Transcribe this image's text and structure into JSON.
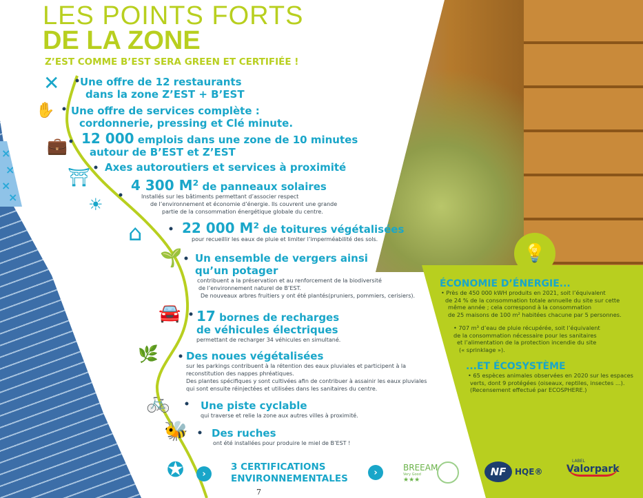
{
  "title_line1": "LES POINTS FORTS",
  "title_line2": "DE LA ZONE",
  "subtitle": "Z’EST COMME B’EST SERA GREEN ET CERTIFIÉE !",
  "points": [
    {
      "icon": "cutlery-icon",
      "heading": [
        "Une offre de 12 restaurants",
        "dans la zone Z’EST + B’EST"
      ]
    },
    {
      "icon": "hand-icon",
      "heading": [
        "Une offre de services complète :",
        "cordonnerie, pressing et Clé minute."
      ]
    },
    {
      "icon": "briefcase-icon",
      "number": "12 000",
      "heading": [
        "emplois dans une zone de 10 minutes",
        "autour de B’EST et Z’EST"
      ]
    },
    {
      "icon": "highway-icon",
      "heading": [
        "Axes autoroutiers et services à proximité"
      ]
    },
    {
      "icon": "solar-panel-icon",
      "number": "4 300 M²",
      "heading": [
        "de panneaux solaires"
      ],
      "text": [
        "Installés sur les bâtiments  permettant d’associer respect",
        "de l’environnement et économie d’énergie. Ils couvrent une grande",
        "partie de la consommation énergétique globale du centre."
      ]
    },
    {
      "icon": "green-house-icon",
      "number": "22 000 M²",
      "heading": [
        "de toitures végétalisées"
      ],
      "text": [
        "pour recueillir les eaux de pluie et limiter l’imperméabilité des sols."
      ]
    },
    {
      "icon": "plant-hand-icon",
      "heading": [
        "Un ensemble de vergers ainsi",
        "qu’un potager"
      ],
      "text": [
        "contribuent a la préservation et au renforcement de la biodiversité",
        "de l’environnement naturel de B’EST.",
        "De nouveaux arbres fruitiers y ont été plantés(pruniers, pommiers, cerisiers)."
      ]
    },
    {
      "icon": "electric-car-icon",
      "number": "17",
      "heading": [
        "bornes de recharges",
        "de véhicules électriques"
      ],
      "text": [
        "permettant de recharger 34 véhicules en simultané."
      ]
    },
    {
      "icon": "sprouts-icon",
      "heading": [
        "Des noues végétalisées"
      ],
      "text": [
        "sur les parkings contribuent à la rétention des eaux pluviales et participent à la",
        "reconstitution des nappes phréatiques.",
        "Des plantes spécifiques y sont cultivées afin de contribuer à assainir les eaux pluviales",
        "qui sont ensuite réinjectées et utilisées dans les sanitaires du centre."
      ]
    },
    {
      "icon": "bicycle-icon",
      "heading": [
        "Une piste cyclable"
      ],
      "text": [
        "qui traverse et relie la zone aux autres villes à proximité."
      ]
    },
    {
      "icon": "beehive-icon",
      "heading": [
        "Des ruches"
      ],
      "text": [
        "ont été installées pour produire le miel de B’EST !"
      ]
    }
  ],
  "certifications": {
    "icon": "laurel-star-icon",
    "label": [
      "3 CERTIFICATIONS",
      "ENVIRONNEMENTALES"
    ],
    "logos": [
      "BREEAM",
      "NF HQE",
      "Valorpark"
    ],
    "breeam_sub": "Very Good",
    "valorpark_label": "LABEL"
  },
  "energy": {
    "heading": "ÉCONOMIE D’ÉNERGIE...",
    "bullets": [
      [
        "• Près de 450 000 kWH produits en 2021, soit l’équivalent",
        "de 24 % de la consommation totale annuelle du site sur cette",
        "même année ; cela correspond à la consommation",
        "de 25 maisons de 100 m² habitées chacune par 5 personnes."
      ],
      [
        "• 707 m³ d’eau de pluie récupérée, soit l’équivalent",
        "de la consommation nécessaire pour les sanitaires",
        "et l’alimentation de la protection incendie du site",
        "(« sprinklage »)."
      ]
    ]
  },
  "ecosystem": {
    "heading": "...ET ÉCOSYSTÈME",
    "bullets": [
      [
        "• 65 espèces animales observées en 2020 sur les espaces",
        "verts, dont 9 protégées (oiseaux, reptiles, insectes ...).",
        "(Recensement effectué par ECOSPHERE.)"
      ]
    ]
  },
  "page_number": "7",
  "colors": {
    "lime": "#b8cf1f",
    "cyan": "#19a6c9",
    "navy": "#1d3e6e"
  }
}
